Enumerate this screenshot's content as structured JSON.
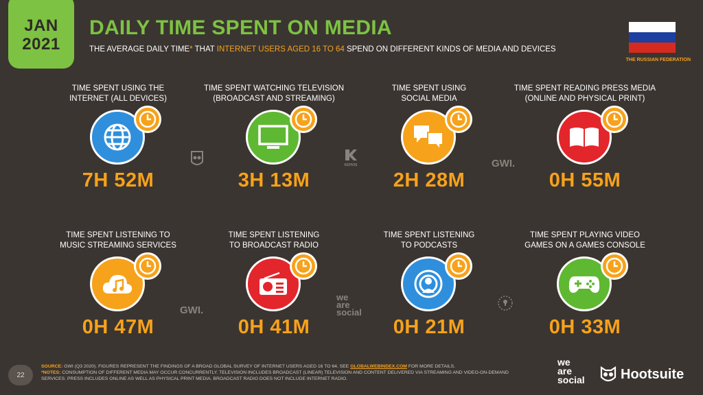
{
  "badge": {
    "month": "JAN",
    "year": "2021"
  },
  "title": "DAILY TIME SPENT ON MEDIA",
  "subtitle": {
    "part1": "THE AVERAGE DAILY TIME",
    "asterisk": "*",
    "part2": " THAT ",
    "highlight": "INTERNET USERS AGED 16 TO 64",
    "part3": " SPEND ON DIFFERENT KINDS OF MEDIA AND DEVICES"
  },
  "country": "THE RUSSIAN FEDERATION",
  "colors": {
    "accent_green": "#7dc242",
    "accent_orange": "#f7a21b",
    "background": "#3b3531"
  },
  "cards": [
    {
      "line1": "TIME SPENT USING THE",
      "line2": "INTERNET (ALL DEVICES)",
      "value": "7H 52M",
      "icon": "globe-icon",
      "color": "#2f8fdc"
    },
    {
      "line1": "TIME SPENT WATCHING TELEVISION",
      "line2": "(BROADCAST AND STREAMING)",
      "value": "3H 13M",
      "icon": "tv-icon",
      "color": "#5fb832"
    },
    {
      "line1": "TIME SPENT USING",
      "line2": "SOCIAL MEDIA",
      "value": "2H 28M",
      "icon": "chat-bubbles-icon",
      "color": "#f7a21b"
    },
    {
      "line1": "TIME SPENT READING PRESS MEDIA",
      "line2": "(ONLINE AND PHYSICAL PRINT)",
      "value": "0H 55M",
      "icon": "book-icon",
      "color": "#e3262c"
    },
    {
      "line1": "TIME SPENT LISTENING TO",
      "line2": "MUSIC STREAMING SERVICES",
      "value": "0H 47M",
      "icon": "music-cloud-icon",
      "color": "#f7a21b"
    },
    {
      "line1": "TIME SPENT LISTENING",
      "line2": "TO BROADCAST RADIO",
      "value": "0H 41M",
      "icon": "radio-icon",
      "color": "#e3262c"
    },
    {
      "line1": "TIME SPENT LISTENING",
      "line2": "TO PODCASTS",
      "value": "0H 21M",
      "icon": "podcast-icon",
      "color": "#2f8fdc"
    },
    {
      "line1": "TIME SPENT PLAYING VIDEO",
      "line2": "GAMES ON A GAMES CONSOLE",
      "value": "0H 33M",
      "icon": "gamepad-icon",
      "color": "#5fb832"
    }
  ],
  "source_logos": {
    "gwi": "GWI.",
    "kepios": "KEPIOS",
    "we_are_social": [
      "we",
      "are",
      "social"
    ]
  },
  "page_number": "22",
  "footer": {
    "source_label": "SOURCE:",
    "source_text": " GWI (Q3 2020). FIGURES REPRESENT THE FINDINGS OF A BROAD GLOBAL SURVEY OF INTERNET USERS AGED 16 TO 64. SEE ",
    "source_link": "GLOBALWEBINDEX.COM",
    "source_tail": " FOR MORE DETAILS.",
    "notes_label": "*NOTES:",
    "notes_text": " CONSUMPTION OF DIFFERENT MEDIA MAY OCCUR CONCURRENTLY. TELEVISION INCLUDES BROADCAST (LINEAR) TELEVISION AND CONTENT DELIVERED VIA STREAMING AND VIDEO-ON-DEMAND SERVICES. PRESS INCLUDES ONLINE AS WELL AS PHYSICAL PRINT MEDIA. BROADCAST RADIO DOES NOT INCLUDE INTERNET RADIO."
  },
  "brand": {
    "we": "we",
    "are": "are",
    "social": "social",
    "hootsuite": "Hootsuite"
  }
}
